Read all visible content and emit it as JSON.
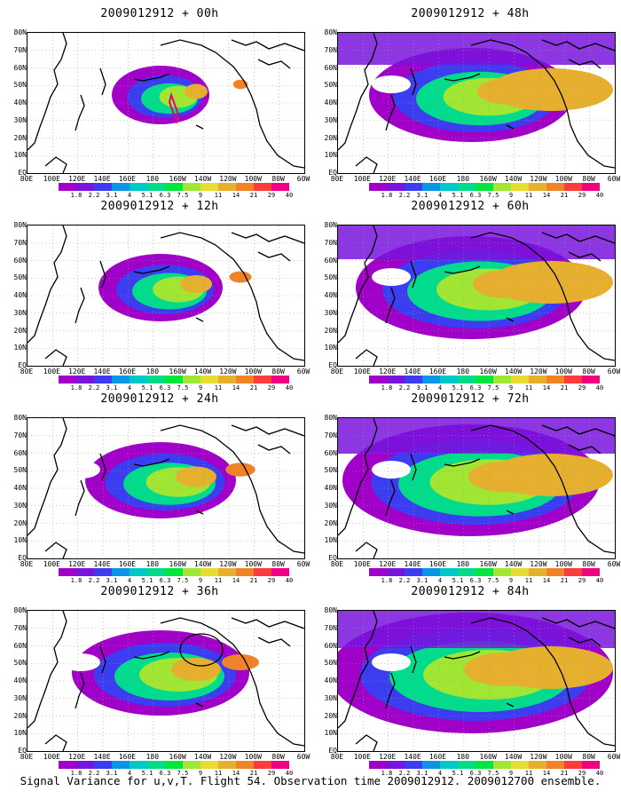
{
  "panels": [
    {
      "title": "2009012912 + 00h",
      "level": 1
    },
    {
      "title": "2009012912 + 12h",
      "level": 2
    },
    {
      "title": "2009012912 + 24h",
      "level": 3
    },
    {
      "title": "2009012912 + 36h",
      "level": 4
    },
    {
      "title": "2009012912 + 48h",
      "level": 5
    },
    {
      "title": "2009012912 + 60h",
      "level": 6
    },
    {
      "title": "2009012912 + 72h",
      "level": 7
    },
    {
      "title": "2009012912 + 84h",
      "level": 8
    }
  ],
  "lat_labels": [
    "80N",
    "70N",
    "60N",
    "50N",
    "40N",
    "30N",
    "20N",
    "10N",
    "EQ"
  ],
  "lon_labels": [
    "80E",
    "100E",
    "120E",
    "140E",
    "160E",
    "180",
    "160W",
    "140W",
    "120W",
    "100W",
    "80W",
    "60W"
  ],
  "colorbar": {
    "labels": [
      "1.8",
      "2.2",
      "3.1",
      "4",
      "5.1",
      "6.3",
      "7.5",
      "9",
      "11",
      "14",
      "21",
      "29",
      "40"
    ],
    "colors": [
      "#a000c8",
      "#7814dc",
      "#3c3cf0",
      "#0a96e6",
      "#00c8c8",
      "#00dc8c",
      "#00e63c",
      "#a0e632",
      "#e6dc32",
      "#e6af2d",
      "#f08228",
      "#fa3c3c",
      "#f00082"
    ]
  },
  "caption": "Signal Variance for u,v,T. Flight 54. Observation time 2009012912. 2009012700 ensemble."
}
